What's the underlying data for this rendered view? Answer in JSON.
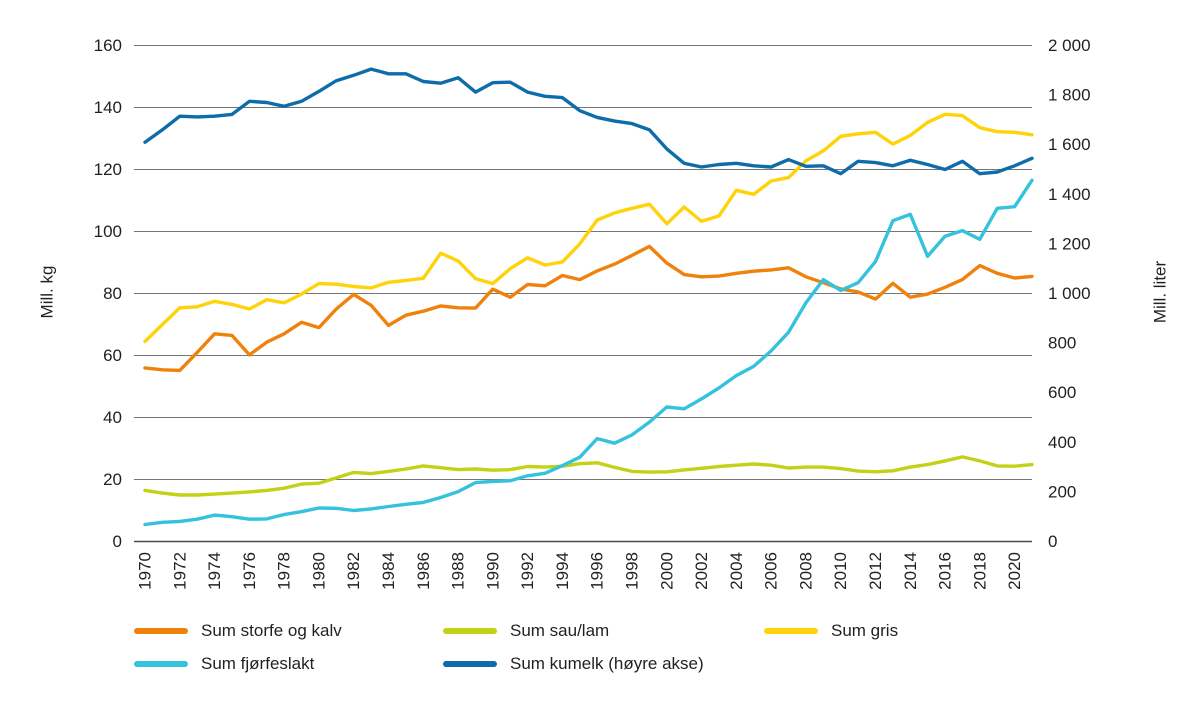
{
  "chart_data": {
    "type": "line",
    "title": "",
    "grid": true,
    "legend_position": "bottom",
    "background_color": "#ffffff",
    "gridline_color": "#757575",
    "axis_line_color": "#4a4a4a",
    "text_color": "#231f20",
    "x": [
      1970,
      1971,
      1972,
      1973,
      1974,
      1975,
      1976,
      1977,
      1978,
      1979,
      1980,
      1981,
      1982,
      1983,
      1984,
      1985,
      1986,
      1987,
      1988,
      1989,
      1990,
      1991,
      1992,
      1993,
      1994,
      1995,
      1996,
      1997,
      1998,
      1999,
      2000,
      2001,
      2002,
      2003,
      2004,
      2005,
      2006,
      2007,
      2008,
      2009,
      2010,
      2011,
      2012,
      2013,
      2014,
      2015,
      2016,
      2017,
      2018,
      2019,
      2020,
      2021
    ],
    "x_tick_labels": [
      "1970",
      "1972",
      "1974",
      "1976",
      "1978",
      "1980",
      "1982",
      "1984",
      "1986",
      "1988",
      "1990",
      "1992",
      "1994",
      "1996",
      "1998",
      "2000",
      "2002",
      "2004",
      "2006",
      "2008",
      "2010",
      "2012",
      "2014",
      "2016",
      "2018",
      "2020"
    ],
    "left_axis": {
      "label": "Mill. kg",
      "range": [
        0,
        160
      ],
      "tick_values": [
        0,
        20,
        40,
        60,
        80,
        100,
        120,
        140,
        160
      ],
      "tick_labels": [
        "0",
        "20",
        "40",
        "60",
        "80",
        "100",
        "120",
        "140",
        "160"
      ]
    },
    "right_axis": {
      "label": "Mill. liter",
      "range": [
        0,
        2000
      ],
      "tick_values": [
        0,
        200,
        400,
        600,
        800,
        1000,
        1200,
        1400,
        1600,
        1800,
        2000
      ],
      "tick_labels": [
        "0",
        "200",
        "400",
        "600",
        "800",
        "1 000",
        "1 200",
        "1 400",
        "1 600",
        "1 800",
        "2 000"
      ]
    },
    "series": [
      {
        "name": "Sum storfe og kalv",
        "color": "#ef820d",
        "axis": "left",
        "values": [
          56,
          55.4,
          55.2,
          61,
          67,
          66.5,
          60.2,
          64.3,
          67,
          70.7,
          69,
          75,
          79.7,
          76.2,
          69.7,
          73,
          74.3,
          76,
          75.4,
          75.3,
          81.4,
          78.8,
          82.9,
          82.5,
          85.8,
          84.5,
          87.3,
          89.5,
          92.3,
          95.2,
          89.8,
          86.1,
          85.4,
          85.6,
          86.5,
          87.2,
          87.6,
          88.3,
          85.4,
          83.5,
          81.5,
          80.5,
          78.2,
          83.3,
          78.8,
          79.8,
          82,
          84.5,
          89,
          86.5,
          85,
          85.5
        ]
      },
      {
        "name": "Sum sau/lam",
        "color": "#c3d117",
        "axis": "left",
        "values": [
          16.5,
          15.6,
          15,
          15,
          15.3,
          15.6,
          16,
          16.5,
          17.2,
          18.5,
          18.8,
          20.5,
          22.3,
          21.9,
          22.6,
          23.4,
          24.4,
          23.8,
          23.2,
          23.4,
          23,
          23.2,
          24.2,
          24,
          24.3,
          25.1,
          25.4,
          23.9,
          22.6,
          22.4,
          22.5,
          23.1,
          23.6,
          24.2,
          24.6,
          25,
          24.6,
          23.7,
          24,
          24,
          23.5,
          22.7,
          22.5,
          22.8,
          24,
          24.8,
          26,
          27.3,
          26,
          24.4,
          24.3,
          24.8
        ]
      },
      {
        "name": "Sum gris",
        "color": "#ffd20a",
        "axis": "left",
        "values": [
          64.5,
          70,
          75.4,
          75.7,
          77.5,
          76.5,
          75,
          78,
          77,
          79.8,
          83.2,
          83,
          82.3,
          81.8,
          83.6,
          84.2,
          84.9,
          93,
          90.5,
          84.8,
          83.2,
          88,
          91.5,
          89.2,
          90.2,
          96,
          103.7,
          106,
          107.5,
          108.8,
          102.5,
          107.9,
          103.3,
          105,
          113.3,
          112,
          116.3,
          117.4,
          122.8,
          126,
          130.7,
          131.5,
          132,
          128.2,
          131,
          135.2,
          137.8,
          137.4,
          133.5,
          132.2,
          132,
          131.2
        ]
      },
      {
        "name": "Sum fjørfeslakt",
        "color": "#35c2dd",
        "axis": "left",
        "values": [
          5.5,
          6.2,
          6.5,
          7.2,
          8.5,
          8,
          7.2,
          7.3,
          8.7,
          9.6,
          10.8,
          10.7,
          10,
          10.5,
          11.3,
          12,
          12.6,
          14.2,
          16.1,
          19,
          19.4,
          19.6,
          21.2,
          22,
          24.5,
          27.2,
          33.2,
          31.7,
          34.4,
          38.5,
          43.4,
          42.8,
          46,
          49.5,
          53.5,
          56.5,
          61.5,
          67.5,
          77,
          84.5,
          81,
          83.5,
          90.3,
          103.5,
          105.5,
          92,
          98.5,
          100.3,
          97.5,
          107.5,
          108,
          116.5
        ]
      },
      {
        "name": "Sum kumelk (høyre akse)",
        "color": "#0f6cab",
        "axis": "right",
        "values": [
          1610,
          1660,
          1715,
          1712,
          1715,
          1722,
          1775,
          1770,
          1755,
          1775,
          1815,
          1858,
          1880,
          1905,
          1886,
          1886,
          1855,
          1848,
          1870,
          1812,
          1850,
          1852,
          1812,
          1795,
          1790,
          1737,
          1710,
          1695,
          1685,
          1660,
          1583,
          1525,
          1510,
          1520,
          1525,
          1515,
          1510,
          1540,
          1513,
          1515,
          1483,
          1533,
          1528,
          1515,
          1537,
          1520,
          1500,
          1533,
          1483,
          1490,
          1515,
          1545
        ]
      }
    ]
  }
}
